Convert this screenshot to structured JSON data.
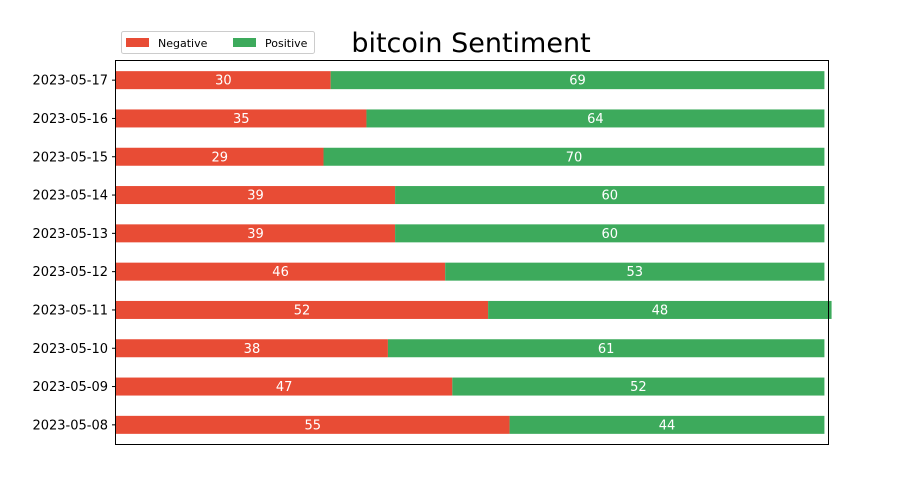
{
  "chart_data": {
    "type": "bar",
    "orientation": "horizontal",
    "stacked": true,
    "title": "bitcoin Sentiment",
    "xlabel": "",
    "ylabel": "",
    "categories": [
      "2023-05-08",
      "2023-05-09",
      "2023-05-10",
      "2023-05-11",
      "2023-05-12",
      "2023-05-13",
      "2023-05-14",
      "2023-05-15",
      "2023-05-16",
      "2023-05-17"
    ],
    "series": [
      {
        "name": "Negative",
        "color": "#e84c35",
        "values": [
          55,
          47,
          38,
          52,
          46,
          39,
          39,
          29,
          35,
          30
        ]
      },
      {
        "name": "Positive",
        "color": "#3daa5c",
        "values": [
          44,
          52,
          61,
          48,
          53,
          60,
          60,
          70,
          64,
          69
        ]
      }
    ],
    "xlim": [
      0,
      99.5
    ],
    "x_axis_visible": false,
    "grid": false,
    "legend": "top-left",
    "data_label_color": "#ffffff"
  }
}
